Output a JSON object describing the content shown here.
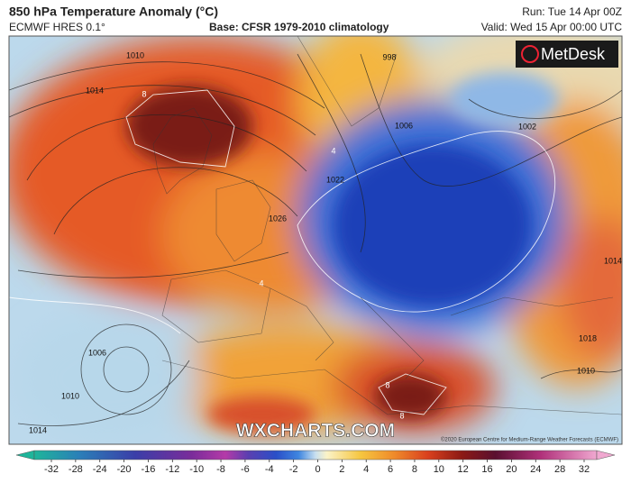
{
  "header": {
    "title": "850 hPa Temperature Anomaly (°C)",
    "model": "ECMWF HRES 0.1°",
    "base": "Base: CFSR 1979-2010 climatology",
    "run": "Run: Tue 14 Apr 00Z",
    "valid": "Valid: Wed 15 Apr 00:00 UTC"
  },
  "map": {
    "brand": "MetDesk",
    "watermark": "WXCHARTS.COM",
    "credit": "©2020 European Centre for Medium-Range Weather Forecasts (ECMWF)",
    "contour_labels": [
      "1010",
      "1014",
      "998",
      "1006",
      "1002",
      "1022",
      "1026",
      "1006",
      "1010",
      "1014",
      "1018",
      "1014",
      "1010",
      "8",
      "8",
      "8",
      "4",
      "4"
    ]
  },
  "colorbar": {
    "ticks": [
      -32,
      -28,
      -24,
      -20,
      -16,
      -12,
      -10,
      -8,
      -6,
      -4,
      -2,
      0,
      2,
      4,
      6,
      8,
      10,
      12,
      16,
      20,
      24,
      28,
      32
    ]
  }
}
